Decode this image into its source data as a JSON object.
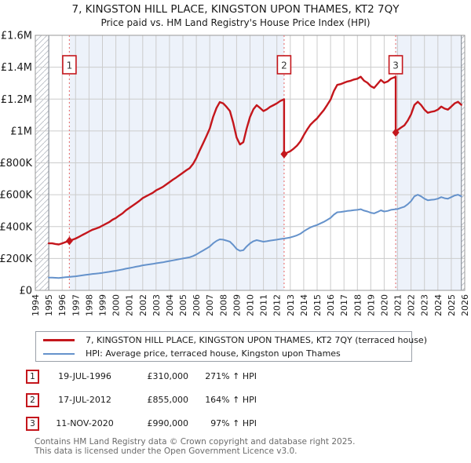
{
  "chart_data": {
    "type": "line",
    "title": "7, KINGSTON HILL PLACE, KINGSTON UPON THAMES, KT2 7QY",
    "subtitle": "Price paid vs. HM Land Registry's House Price Index (HPI)",
    "xlim": [
      1994,
      2026
    ],
    "ylim": [
      0,
      1600000
    ],
    "grid": true,
    "x_axis": {
      "ticks": [
        1994,
        1995,
        1996,
        1997,
        1998,
        1999,
        2000,
        2001,
        2002,
        2003,
        2004,
        2005,
        2006,
        2007,
        2008,
        2009,
        2010,
        2011,
        2012,
        2013,
        2014,
        2015,
        2016,
        2017,
        2018,
        2019,
        2020,
        2021,
        2022,
        2023,
        2024,
        2025,
        2026
      ]
    },
    "y_axis": {
      "ticks": [
        {
          "value": 0,
          "label": "£0"
        },
        {
          "value": 200000,
          "label": "£200K"
        },
        {
          "value": 400000,
          "label": "£400K"
        },
        {
          "value": 600000,
          "label": "£600K"
        },
        {
          "value": 800000,
          "label": "£800K"
        },
        {
          "value": 1000000,
          "label": "£1M"
        },
        {
          "value": 1200000,
          "label": "£1.2M"
        },
        {
          "value": 1400000,
          "label": "£1.4M"
        },
        {
          "value": 1600000,
          "label": "£1.6M"
        }
      ]
    },
    "colors": {
      "red": "#c4161c",
      "blue": "#6592cb",
      "sale_line": "#e87c7c",
      "band": "#edf2fa",
      "grid": "#cccccc",
      "frame": "#999999",
      "hatch": "#b8bcc4",
      "text": "#1a1a1a"
    },
    "owned_periods": [
      [
        1996.54,
        2012.54
      ],
      [
        2020.86,
        2026
      ]
    ],
    "no_data_regions": [
      [
        1994,
        1995.0
      ],
      [
        2025.75,
        2026
      ]
    ],
    "sales": [
      {
        "label": "1",
        "x": 1996.54,
        "price": 310000
      },
      {
        "label": "2",
        "x": 2012.54,
        "price": 855000
      },
      {
        "label": "3",
        "x": 2020.86,
        "price": 990000
      }
    ],
    "legend": {
      "position": "bottom",
      "items": [
        {
          "color": "#c4161c",
          "width": 2.4,
          "label": "7, KINGSTON HILL PLACE, KINGSTON UPON THAMES, KT2 7QY (terraced house)"
        },
        {
          "color": "#6592cb",
          "width": 2.0,
          "label": "HPI: Average price, terraced house, Kingston upon Thames"
        }
      ]
    },
    "series": [
      {
        "id": "property-price",
        "name": "7, KINGSTON HILL PLACE, KINGSTON UPON THAMES, KT2 7QY (terraced house)",
        "color": "#c4161c",
        "width": 2.4,
        "points": [
          [
            1995.0,
            295000
          ],
          [
            1995.25,
            295000
          ],
          [
            1995.5,
            291000
          ],
          [
            1995.75,
            288000
          ],
          [
            1996.0,
            295000
          ],
          [
            1996.25,
            303000
          ],
          [
            1996.54,
            310000
          ],
          [
            1996.75,
            317000
          ],
          [
            1997.0,
            325000
          ],
          [
            1997.25,
            336000
          ],
          [
            1997.5,
            347000
          ],
          [
            1997.75,
            358000
          ],
          [
            1998.0,
            369000
          ],
          [
            1998.25,
            380000
          ],
          [
            1998.5,
            387000
          ],
          [
            1998.75,
            395000
          ],
          [
            1999.0,
            406000
          ],
          [
            1999.25,
            417000
          ],
          [
            1999.5,
            428000
          ],
          [
            1999.75,
            443000
          ],
          [
            2000.0,
            454000
          ],
          [
            2000.25,
            469000
          ],
          [
            2000.5,
            483000
          ],
          [
            2000.75,
            502000
          ],
          [
            2001.0,
            517000
          ],
          [
            2001.25,
            531000
          ],
          [
            2001.5,
            546000
          ],
          [
            2001.75,
            561000
          ],
          [
            2002.0,
            579000
          ],
          [
            2002.25,
            590000
          ],
          [
            2002.5,
            601000
          ],
          [
            2002.75,
            612000
          ],
          [
            2003.0,
            627000
          ],
          [
            2003.25,
            638000
          ],
          [
            2003.5,
            649000
          ],
          [
            2003.75,
            664000
          ],
          [
            2004.0,
            679000
          ],
          [
            2004.25,
            694000
          ],
          [
            2004.5,
            708000
          ],
          [
            2004.75,
            723000
          ],
          [
            2005.0,
            738000
          ],
          [
            2005.25,
            753000
          ],
          [
            2005.5,
            767000
          ],
          [
            2005.75,
            793000
          ],
          [
            2006.0,
            830000
          ],
          [
            2006.25,
            878000
          ],
          [
            2006.5,
            922000
          ],
          [
            2006.75,
            967000
          ],
          [
            2007.0,
            1015000
          ],
          [
            2007.25,
            1088000
          ],
          [
            2007.5,
            1144000
          ],
          [
            2007.75,
            1181000
          ],
          [
            2008.0,
            1173000
          ],
          [
            2008.25,
            1151000
          ],
          [
            2008.5,
            1125000
          ],
          [
            2008.75,
            1051000
          ],
          [
            2009.0,
            959000
          ],
          [
            2009.25,
            915000
          ],
          [
            2009.5,
            930000
          ],
          [
            2009.75,
            1015000
          ],
          [
            2010.0,
            1088000
          ],
          [
            2010.25,
            1136000
          ],
          [
            2010.5,
            1162000
          ],
          [
            2010.75,
            1144000
          ],
          [
            2011.0,
            1125000
          ],
          [
            2011.25,
            1136000
          ],
          [
            2011.5,
            1151000
          ],
          [
            2011.75,
            1162000
          ],
          [
            2012.0,
            1173000
          ],
          [
            2012.25,
            1188000
          ],
          [
            2012.54,
            1199000
          ],
          [
            2012.54,
            855000
          ],
          [
            2012.75,
            863000
          ],
          [
            2013.0,
            873000
          ],
          [
            2013.25,
            889000
          ],
          [
            2013.5,
            908000
          ],
          [
            2013.75,
            934000
          ],
          [
            2014.0,
            973000
          ],
          [
            2014.25,
            1008000
          ],
          [
            2014.5,
            1039000
          ],
          [
            2014.75,
            1060000
          ],
          [
            2015.0,
            1079000
          ],
          [
            2015.25,
            1105000
          ],
          [
            2015.5,
            1131000
          ],
          [
            2015.75,
            1163000
          ],
          [
            2016.0,
            1197000
          ],
          [
            2016.25,
            1250000
          ],
          [
            2016.5,
            1289000
          ],
          [
            2016.75,
            1294000
          ],
          [
            2017.0,
            1302000
          ],
          [
            2017.25,
            1310000
          ],
          [
            2017.5,
            1315000
          ],
          [
            2017.75,
            1323000
          ],
          [
            2018.0,
            1328000
          ],
          [
            2018.25,
            1340000
          ],
          [
            2018.5,
            1315000
          ],
          [
            2018.75,
            1302000
          ],
          [
            2019.0,
            1281000
          ],
          [
            2019.25,
            1270000
          ],
          [
            2019.5,
            1295000
          ],
          [
            2019.75,
            1320000
          ],
          [
            2020.0,
            1302000
          ],
          [
            2020.25,
            1310000
          ],
          [
            2020.5,
            1328000
          ],
          [
            2020.86,
            1340000
          ],
          [
            2020.86,
            990000
          ],
          [
            2021.0,
            1006000
          ],
          [
            2021.25,
            1021000
          ],
          [
            2021.5,
            1035000
          ],
          [
            2021.75,
            1065000
          ],
          [
            2022.0,
            1104000
          ],
          [
            2022.25,
            1163000
          ],
          [
            2022.5,
            1183000
          ],
          [
            2022.75,
            1163000
          ],
          [
            2023.0,
            1134000
          ],
          [
            2023.25,
            1114000
          ],
          [
            2023.5,
            1120000
          ],
          [
            2023.75,
            1124000
          ],
          [
            2024.0,
            1134000
          ],
          [
            2024.25,
            1153000
          ],
          [
            2024.5,
            1140000
          ],
          [
            2024.75,
            1134000
          ],
          [
            2025.0,
            1153000
          ],
          [
            2025.25,
            1173000
          ],
          [
            2025.5,
            1183000
          ],
          [
            2025.75,
            1164000
          ]
        ]
      },
      {
        "id": "hpi",
        "name": "HPI: Average price, terraced house, Kingston upon Thames",
        "color": "#6592cb",
        "width": 2.0,
        "points": [
          [
            1995.0,
            80000
          ],
          [
            1995.25,
            80000
          ],
          [
            1995.5,
            79000
          ],
          [
            1995.75,
            78000
          ],
          [
            1996.0,
            80000
          ],
          [
            1996.25,
            82000
          ],
          [
            1996.54,
            84000
          ],
          [
            1996.75,
            86000
          ],
          [
            1997.0,
            88000
          ],
          [
            1997.25,
            91000
          ],
          [
            1997.5,
            94000
          ],
          [
            1997.75,
            97000
          ],
          [
            1998.0,
            100000
          ],
          [
            1998.25,
            103000
          ],
          [
            1998.5,
            105000
          ],
          [
            1998.75,
            107000
          ],
          [
            1999.0,
            110000
          ],
          [
            1999.25,
            113000
          ],
          [
            1999.5,
            116000
          ],
          [
            1999.75,
            120000
          ],
          [
            2000.0,
            123000
          ],
          [
            2000.25,
            127000
          ],
          [
            2000.5,
            131000
          ],
          [
            2000.75,
            136000
          ],
          [
            2001.0,
            140000
          ],
          [
            2001.25,
            144000
          ],
          [
            2001.5,
            148000
          ],
          [
            2001.75,
            152000
          ],
          [
            2002.0,
            157000
          ],
          [
            2002.25,
            160000
          ],
          [
            2002.5,
            163000
          ],
          [
            2002.75,
            166000
          ],
          [
            2003.0,
            170000
          ],
          [
            2003.25,
            173000
          ],
          [
            2003.5,
            176000
          ],
          [
            2003.75,
            180000
          ],
          [
            2004.0,
            184000
          ],
          [
            2004.25,
            188000
          ],
          [
            2004.5,
            192000
          ],
          [
            2004.75,
            196000
          ],
          [
            2005.0,
            200000
          ],
          [
            2005.25,
            204000
          ],
          [
            2005.5,
            208000
          ],
          [
            2005.75,
            215000
          ],
          [
            2006.0,
            225000
          ],
          [
            2006.25,
            238000
          ],
          [
            2006.5,
            250000
          ],
          [
            2006.75,
            262000
          ],
          [
            2007.0,
            275000
          ],
          [
            2007.25,
            295000
          ],
          [
            2007.5,
            310000
          ],
          [
            2007.75,
            320000
          ],
          [
            2008.0,
            318000
          ],
          [
            2008.25,
            312000
          ],
          [
            2008.5,
            305000
          ],
          [
            2008.75,
            285000
          ],
          [
            2009.0,
            260000
          ],
          [
            2009.25,
            248000
          ],
          [
            2009.5,
            252000
          ],
          [
            2009.75,
            275000
          ],
          [
            2010.0,
            295000
          ],
          [
            2010.25,
            308000
          ],
          [
            2010.5,
            315000
          ],
          [
            2010.75,
            310000
          ],
          [
            2011.0,
            305000
          ],
          [
            2011.25,
            308000
          ],
          [
            2011.5,
            312000
          ],
          [
            2011.75,
            315000
          ],
          [
            2012.0,
            318000
          ],
          [
            2012.25,
            322000
          ],
          [
            2012.54,
            325000
          ],
          [
            2012.75,
            328000
          ],
          [
            2013.0,
            332000
          ],
          [
            2013.25,
            338000
          ],
          [
            2013.5,
            345000
          ],
          [
            2013.75,
            355000
          ],
          [
            2014.0,
            370000
          ],
          [
            2014.25,
            383000
          ],
          [
            2014.5,
            395000
          ],
          [
            2014.75,
            403000
          ],
          [
            2015.0,
            410000
          ],
          [
            2015.25,
            420000
          ],
          [
            2015.5,
            430000
          ],
          [
            2015.75,
            442000
          ],
          [
            2016.0,
            455000
          ],
          [
            2016.25,
            475000
          ],
          [
            2016.5,
            490000
          ],
          [
            2016.75,
            492000
          ],
          [
            2017.0,
            495000
          ],
          [
            2017.25,
            498000
          ],
          [
            2017.5,
            500000
          ],
          [
            2017.75,
            503000
          ],
          [
            2018.0,
            505000
          ],
          [
            2018.25,
            509000
          ],
          [
            2018.5,
            500000
          ],
          [
            2018.75,
            495000
          ],
          [
            2019.0,
            487000
          ],
          [
            2019.25,
            483000
          ],
          [
            2019.5,
            492000
          ],
          [
            2019.75,
            502000
          ],
          [
            2020.0,
            495000
          ],
          [
            2020.25,
            498000
          ],
          [
            2020.5,
            505000
          ],
          [
            2020.86,
            509000
          ],
          [
            2021.0,
            510000
          ],
          [
            2021.25,
            518000
          ],
          [
            2021.5,
            525000
          ],
          [
            2021.75,
            540000
          ],
          [
            2022.0,
            560000
          ],
          [
            2022.25,
            590000
          ],
          [
            2022.5,
            600000
          ],
          [
            2022.75,
            590000
          ],
          [
            2023.0,
            575000
          ],
          [
            2023.25,
            565000
          ],
          [
            2023.5,
            568000
          ],
          [
            2023.75,
            570000
          ],
          [
            2024.0,
            575000
          ],
          [
            2024.25,
            585000
          ],
          [
            2024.5,
            578000
          ],
          [
            2024.75,
            575000
          ],
          [
            2025.0,
            585000
          ],
          [
            2025.25,
            595000
          ],
          [
            2025.5,
            600000
          ],
          [
            2025.75,
            590000
          ]
        ]
      }
    ]
  },
  "transactions": [
    {
      "num": "1",
      "date": "19-JUL-1996",
      "price": "£310,000",
      "hpi": "271% ↑ HPI"
    },
    {
      "num": "2",
      "date": "17-JUL-2012",
      "price": "£855,000",
      "hpi": "164% ↑ HPI"
    },
    {
      "num": "3",
      "date": "11-NOV-2020",
      "price": "£990,000",
      "hpi": "97% ↑ HPI"
    }
  ],
  "footer": {
    "line1": "Contains HM Land Registry data © Crown copyright and database right 2025.",
    "line2": "This data is licensed under the Open Government Licence v3.0."
  }
}
